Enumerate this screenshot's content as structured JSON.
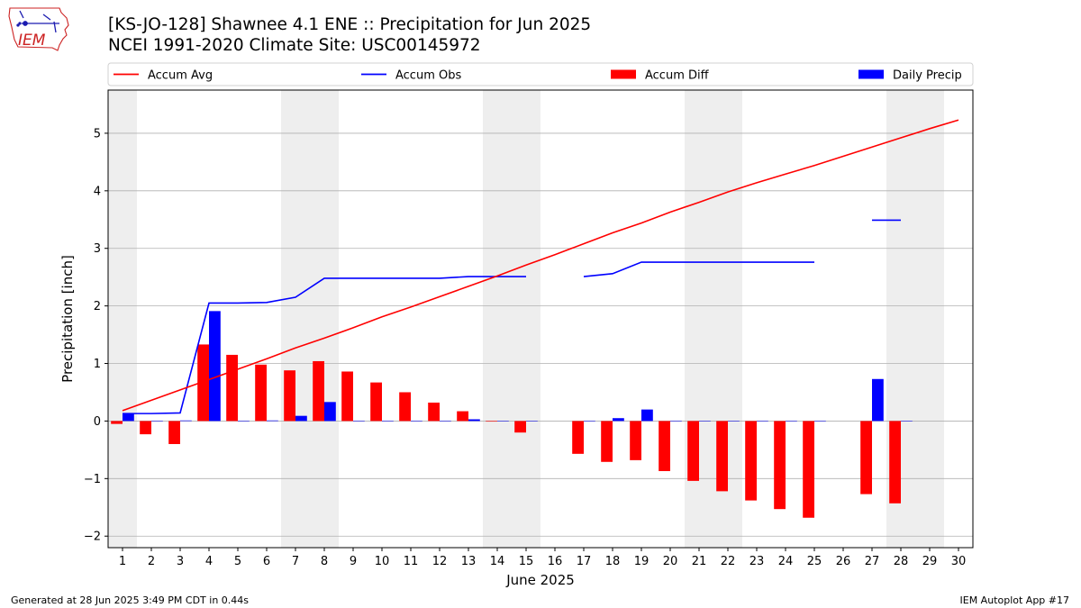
{
  "header": {
    "title_line1": "[KS-JO-128] Shawnee 4.1 ENE :: Precipitation for Jun 2025",
    "title_line2": "NCEI 1991-2020 Climate Site: USC00145972",
    "logo_text": "IEM"
  },
  "footer": {
    "generated": "Generated at 28 Jun 2025 3:49 PM CDT in 0.44s",
    "app": "IEM Autoplot App #17"
  },
  "colors": {
    "avg": "#ff0000",
    "obs": "#0000ff",
    "diff": "#ff0000",
    "daily": "#0000ff",
    "weekend_shade": "#eeeeee",
    "grid": "#b0b0b0"
  },
  "chart_data": {
    "type": "bar",
    "xlabel": "June 2025",
    "ylabel": "Precipitation [inch]",
    "ylim": [
      -2.2,
      5.75
    ],
    "xlim": [
      0.5,
      30.5
    ],
    "grid": "horizontal",
    "legend_position": "top",
    "days": [
      1,
      2,
      3,
      4,
      5,
      6,
      7,
      8,
      9,
      10,
      11,
      12,
      13,
      14,
      15,
      16,
      17,
      18,
      19,
      20,
      21,
      22,
      23,
      24,
      25,
      26,
      27,
      28,
      29,
      30
    ],
    "yticks": [
      -2,
      -1,
      0,
      1,
      2,
      3,
      4,
      5
    ],
    "weekend_shading": [
      [
        1,
        1
      ],
      [
        7,
        8
      ],
      [
        14,
        15
      ],
      [
        21,
        22
      ],
      [
        28,
        29
      ]
    ],
    "series": [
      {
        "name": "Accum Avg",
        "kind": "line",
        "values": [
          0.18,
          0.36,
          0.54,
          0.72,
          0.9,
          1.08,
          1.27,
          1.44,
          1.62,
          1.81,
          1.98,
          2.16,
          2.34,
          2.52,
          2.71,
          2.89,
          3.08,
          3.27,
          3.44,
          3.63,
          3.8,
          3.98,
          4.14,
          4.29,
          4.44,
          4.6,
          4.76,
          4.92,
          5.08,
          5.23
        ]
      },
      {
        "name": "Accum Obs",
        "kind": "line",
        "values": [
          0.13,
          0.13,
          0.14,
          2.05,
          2.05,
          2.06,
          2.15,
          2.48,
          2.48,
          2.48,
          2.48,
          2.48,
          2.51,
          2.51,
          2.51,
          null,
          2.51,
          2.56,
          2.76,
          2.76,
          2.76,
          2.76,
          2.76,
          2.76,
          2.76,
          null,
          3.49,
          3.49,
          null,
          null
        ]
      },
      {
        "name": "Accum Diff",
        "kind": "bar",
        "values": [
          -0.05,
          -0.23,
          -0.4,
          1.33,
          1.15,
          0.98,
          0.88,
          1.04,
          0.86,
          0.67,
          0.5,
          0.32,
          0.17,
          -0.01,
          -0.2,
          null,
          -0.57,
          -0.71,
          -0.68,
          -0.87,
          -1.04,
          -1.22,
          -1.38,
          -1.53,
          -1.68,
          null,
          -1.27,
          -1.43,
          null,
          null
        ]
      },
      {
        "name": "Daily Precip",
        "kind": "bar",
        "values": [
          0.13,
          0,
          0.01,
          1.91,
          0,
          0.01,
          0.09,
          0.33,
          0,
          0,
          0,
          0,
          0.03,
          0,
          0,
          null,
          0,
          0.05,
          0.2,
          0,
          0,
          0,
          0,
          0,
          0,
          null,
          0.73,
          0,
          null,
          null
        ]
      }
    ]
  }
}
